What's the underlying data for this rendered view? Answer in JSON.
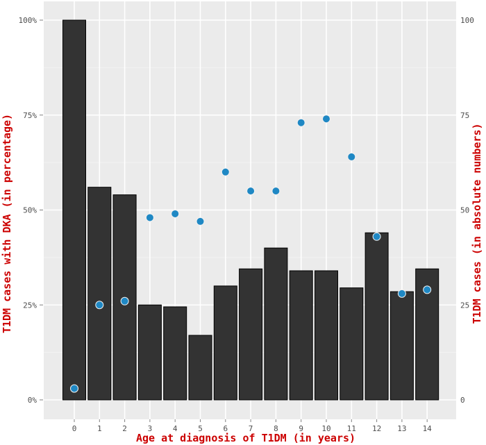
{
  "chart_data": {
    "type": "bar",
    "xlabel": "Age at diagnosis of T1DM (in years)",
    "ylabel_left": "T1DM cases with DKA (in percentage)",
    "ylabel_right": "T1DM cases (in absolute numbers)",
    "categories": [
      "0",
      "1",
      "2",
      "3",
      "4",
      "5",
      "6",
      "7",
      "8",
      "9",
      "10",
      "11",
      "12",
      "13",
      "14"
    ],
    "left_axis": {
      "ylim": [
        0,
        100
      ],
      "ticks": [
        "0%",
        "25%",
        "50%",
        "75%",
        "100%"
      ],
      "tick_values": [
        0,
        25,
        50,
        75,
        100
      ]
    },
    "right_axis": {
      "ylim": [
        0,
        100
      ],
      "ticks": [
        "0",
        "25",
        "50",
        "75",
        "100"
      ],
      "tick_values": [
        0,
        25,
        50,
        75,
        100
      ]
    },
    "series": [
      {
        "type": "bar",
        "axis": "left",
        "values": [
          100,
          56,
          54,
          25,
          24.5,
          17,
          30,
          34.5,
          40,
          34,
          34,
          29.5,
          44,
          28.5,
          34.5
        ]
      },
      {
        "type": "scatter",
        "axis": "right",
        "values": [
          3,
          25,
          26,
          48,
          49,
          47,
          60,
          55,
          55,
          73,
          74,
          64,
          43,
          28,
          29
        ]
      }
    ],
    "grid": true,
    "colors": {
      "panel": "#ebebeb",
      "grid_major": "#ffffff",
      "grid_minor": "#f5f5f5",
      "bar_fill": "#333333",
      "bar_stroke": "#000000",
      "point_fill": "#1f88c4",
      "point_stroke": "#f2f2f2",
      "axis_title": "#cc0000",
      "tick_text": "#4d4d4d"
    }
  }
}
